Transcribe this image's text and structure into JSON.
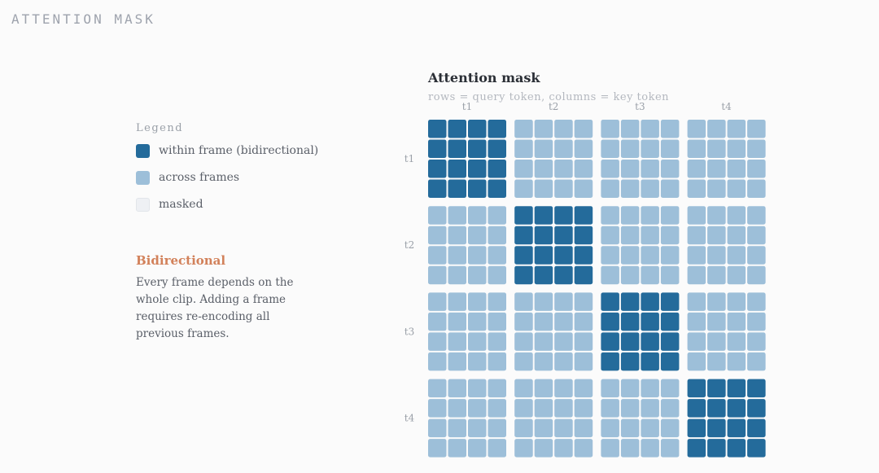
{
  "page_label": "ATTENTION MASK",
  "legend": {
    "title": "Legend",
    "items": [
      {
        "label": "within frame (bidirectional)",
        "color": "#246b9b"
      },
      {
        "label": "across frames",
        "color": "#9dbfd9"
      },
      {
        "label": "masked",
        "color": "#eef0f4"
      }
    ]
  },
  "note": {
    "title": "Bidirectional",
    "body": "Every frame depends on the whole clip. Adding a frame requires re-encoding all previous frames."
  },
  "chart_data": {
    "type": "heatmap",
    "title": "Attention mask",
    "subtitle": "rows = query token, columns = key token",
    "frames": [
      "t1",
      "t2",
      "t3",
      "t4"
    ],
    "tokens_per_frame": 4,
    "legend_placement": "left",
    "state_colors": {
      "within": "#246b9b",
      "across": "#9dbfd9",
      "masked": "#eef0f4"
    },
    "frame_mask": [
      [
        "within",
        "across",
        "across",
        "across"
      ],
      [
        "across",
        "within",
        "across",
        "across"
      ],
      [
        "across",
        "across",
        "within",
        "across"
      ],
      [
        "across",
        "across",
        "across",
        "within"
      ]
    ]
  }
}
